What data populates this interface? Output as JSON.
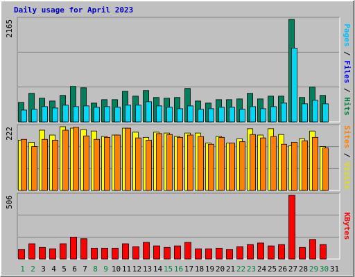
{
  "chart_data": [
    {
      "type": "bar",
      "title": "Daily usage for April 2023",
      "title_color": "#0000c0",
      "ylim": [
        0,
        2165
      ],
      "yticks": [
        2165
      ],
      "legend": [
        {
          "name": "Pages",
          "color": "#00c0ff"
        },
        {
          "name": "Files",
          "color": "#0000ff"
        },
        {
          "name": "Hits",
          "color": "#008040"
        }
      ],
      "legend_separator": " / ",
      "series": [
        {
          "color": "#00805c",
          "values": [
            412,
            603,
            500,
            441,
            559,
            750,
            720,
            397,
            470,
            470,
            647,
            544,
            662,
            515,
            500,
            515,
            706,
            441,
            397,
            470,
            470,
            485,
            603,
            485,
            544,
            544,
            2165,
            515,
            735,
            559,
            null
          ]
        },
        {
          "color": "#00d8f8",
          "values": [
            250,
            265,
            323,
            294,
            353,
            323,
            338,
            309,
            323,
            309,
            353,
            353,
            426,
            338,
            309,
            279,
            338,
            265,
            279,
            309,
            309,
            265,
            323,
            279,
            323,
            397,
            1558,
            382,
            456,
            382,
            null
          ]
        }
      ]
    },
    {
      "type": "bar",
      "ylim": [
        0,
        222
      ],
      "yticks": [
        222
      ],
      "legend": [
        {
          "name": "Sites",
          "color": "#ff8000"
        },
        {
          "name": "Visits",
          "color": "#e0e000"
        }
      ],
      "legend_separator": " / ",
      "series": [
        {
          "color": "#ffff00",
          "values": [
            175,
            168,
            210,
            193,
            222,
            217,
            212,
            207,
            188,
            193,
            217,
            203,
            185,
            203,
            200,
            188,
            200,
            200,
            165,
            188,
            165,
            180,
            215,
            193,
            215,
            195,
            156,
            180,
            207,
            153,
            null
          ]
        },
        {
          "color": "#ff8000",
          "values": [
            178,
            153,
            178,
            175,
            210,
            220,
            190,
            178,
            185,
            193,
            217,
            183,
            175,
            198,
            195,
            185,
            193,
            188,
            161,
            185,
            165,
            170,
            195,
            183,
            188,
            161,
            168,
            173,
            185,
            148,
            null
          ]
        }
      ]
    },
    {
      "type": "bar",
      "ylim": [
        0,
        506
      ],
      "yticks": [
        506
      ],
      "legend": [
        {
          "name": "KBytes",
          "color": "#ff0000"
        }
      ],
      "series": [
        {
          "color": "#ff0000",
          "values": [
            75,
            121,
            92,
            81,
            121,
            173,
            161,
            86,
            86,
            86,
            121,
            98,
            132,
            104,
            92,
            104,
            132,
            81,
            81,
            86,
            75,
            98,
            115,
            127,
            104,
            115,
            506,
            92,
            155,
            115,
            null
          ]
        }
      ],
      "categories": [
        "1",
        "2",
        "3",
        "4",
        "5",
        "6",
        "7",
        "8",
        "9",
        "10",
        "11",
        "12",
        "13",
        "14",
        "15",
        "16",
        "17",
        "18",
        "19",
        "20",
        "21",
        "22",
        "23",
        "24",
        "25",
        "26",
        "27",
        "28",
        "29",
        "30",
        "31"
      ],
      "category_colors": [
        "#008040",
        "#008040",
        "#000000",
        "#000000",
        "#000000",
        "#000000",
        "#000000",
        "#008040",
        "#008040",
        "#000000",
        "#000000",
        "#000000",
        "#000000",
        "#000000",
        "#008040",
        "#008040",
        "#000000",
        "#000000",
        "#000000",
        "#000000",
        "#000000",
        "#008040",
        "#008040",
        "#000000",
        "#000000",
        "#000000",
        "#000000",
        "#000000",
        "#008040",
        "#008040",
        "#000000"
      ]
    }
  ]
}
